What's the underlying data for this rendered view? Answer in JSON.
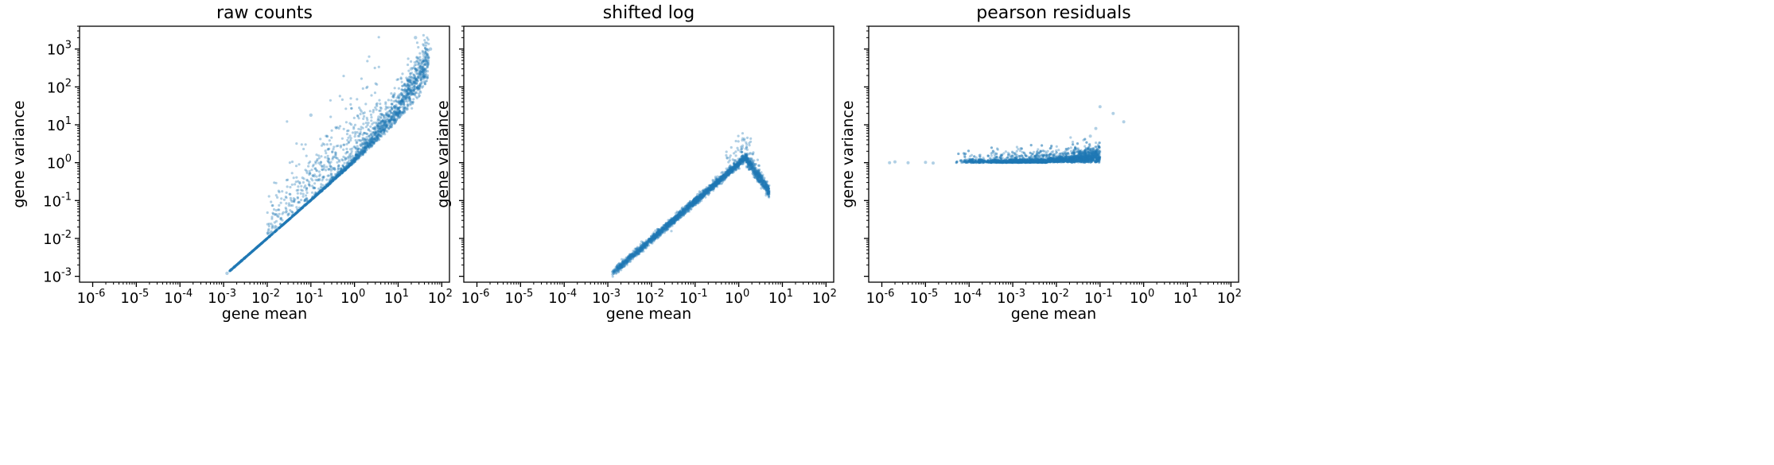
{
  "chart_data": [
    {
      "type": "scatter",
      "title": "raw counts",
      "xlabel": "gene mean",
      "ylabel": "gene variance",
      "xscale": "log",
      "yscale": "log",
      "xlim": [
        5e-07,
        150
      ],
      "ylim": [
        0.0007,
        4000
      ],
      "x_ticks": [
        "10-6",
        "10-5",
        "10-4",
        "10-3",
        "10-2",
        "10-1",
        "100",
        "101",
        "102"
      ],
      "y_ticks": [
        "10-3",
        "10-2",
        "10-1",
        "100",
        "101",
        "102",
        "103"
      ],
      "y_ticklabels_visible": true,
      "color": "#1f77b4",
      "description_points": [
        {
          "x": 0.0012,
          "y": 0.0012
        },
        {
          "x": 0.0015,
          "y": 0.0015
        },
        {
          "x": 0.002,
          "y": 0.002
        },
        {
          "x": 0.0025,
          "y": 0.0025
        },
        {
          "x": 0.003,
          "y": 0.003
        },
        {
          "x": 0.005,
          "y": 0.005
        },
        {
          "x": 0.01,
          "y": 0.011
        },
        {
          "x": 0.03,
          "y": 0.04
        },
        {
          "x": 0.05,
          "y": 0.3
        },
        {
          "x": 0.1,
          "y": 0.12
        },
        {
          "x": 0.1,
          "y": 1.0
        },
        {
          "x": 0.1,
          "y": 18
        },
        {
          "x": 0.3,
          "y": 0.5
        },
        {
          "x": 0.5,
          "y": 3
        },
        {
          "x": 1,
          "y": 2
        },
        {
          "x": 3,
          "y": 10
        },
        {
          "x": 10,
          "y": 60
        },
        {
          "x": 20,
          "y": 300
        },
        {
          "x": 25,
          "y": 2000
        },
        {
          "x": 55,
          "y": 1000
        }
      ]
    },
    {
      "type": "scatter",
      "title": "shifted log",
      "xlabel": "gene mean",
      "ylabel": "gene variance",
      "xscale": "log",
      "yscale": "log",
      "xlim": [
        5e-07,
        150
      ],
      "ylim": [
        0.0007,
        4000
      ],
      "x_ticks": [
        "10-6",
        "10-5",
        "10-4",
        "10-3",
        "10-2",
        "10-1",
        "100",
        "101",
        "102"
      ],
      "y_ticks": [],
      "y_ticklabels_visible": false,
      "color": "#1f77b4",
      "description_points": [
        {
          "x": 0.0013,
          "y": 0.0015
        },
        {
          "x": 0.003,
          "y": 0.004
        },
        {
          "x": 0.01,
          "y": 0.012
        },
        {
          "x": 0.03,
          "y": 0.04
        },
        {
          "x": 0.1,
          "y": 0.12
        },
        {
          "x": 0.3,
          "y": 0.35
        },
        {
          "x": 1,
          "y": 0.9
        },
        {
          "x": 1.5,
          "y": 1.1
        },
        {
          "x": 1.3,
          "y": 2.5
        },
        {
          "x": 3,
          "y": 0.8
        },
        {
          "x": 4.5,
          "y": 0.25
        }
      ]
    },
    {
      "type": "scatter",
      "title": "pearson residuals",
      "xlabel": "gene mean",
      "ylabel": "gene variance",
      "xscale": "log",
      "yscale": "log",
      "xlim": [
        5e-07,
        150
      ],
      "ylim": [
        0.0007,
        4000
      ],
      "x_ticks": [
        "10-6",
        "10-5",
        "10-4",
        "10-3",
        "10-2",
        "10-1",
        "100",
        "101",
        "102"
      ],
      "y_ticks": [],
      "y_ticklabels_visible": false,
      "color": "#1f77b4",
      "description_points": [
        {
          "x": 1.5e-06,
          "y": 1.0
        },
        {
          "x": 1e-05,
          "y": 1.0
        },
        {
          "x": 0.0001,
          "y": 1.0
        },
        {
          "x": 0.001,
          "y": 1.05
        },
        {
          "x": 0.01,
          "y": 1.1
        },
        {
          "x": 0.03,
          "y": 1.5
        },
        {
          "x": 0.06,
          "y": 5
        },
        {
          "x": 0.08,
          "y": 8
        },
        {
          "x": 0.1,
          "y": 30
        },
        {
          "x": 0.35,
          "y": 12
        }
      ]
    }
  ]
}
